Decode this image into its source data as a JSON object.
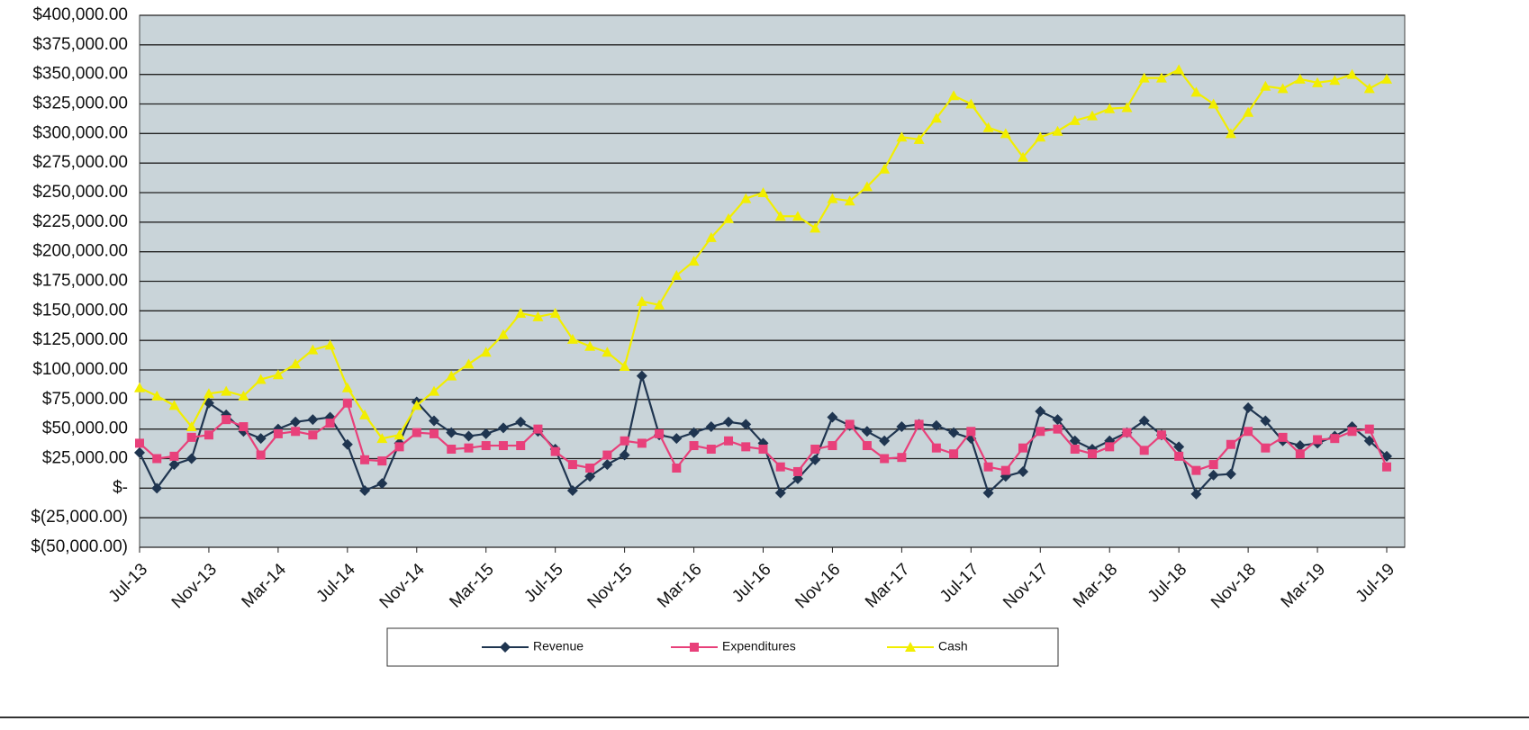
{
  "chart_data": {
    "type": "line",
    "categories": [
      "Jul-13",
      null,
      null,
      null,
      "Nov-13",
      null,
      null,
      null,
      "Mar-14",
      null,
      null,
      null,
      "Jul-14",
      null,
      null,
      null,
      "Nov-14",
      null,
      null,
      null,
      "Mar-15",
      null,
      null,
      null,
      "Jul-15",
      null,
      null,
      null,
      "Nov-15",
      null,
      null,
      null,
      "Mar-16",
      null,
      null,
      null,
      "Jul-16",
      null,
      null,
      null,
      "Nov-16",
      null,
      null,
      null,
      "Mar-17",
      null,
      null,
      null,
      "Jul-17",
      null,
      null,
      null,
      "Nov-17",
      null,
      null,
      null,
      "Mar-18",
      null,
      null,
      null,
      "Jul-18",
      null,
      null,
      null,
      "Nov-18",
      null,
      null,
      null,
      "Mar-19",
      null,
      null,
      null,
      "Jul-19"
    ],
    "series": [
      {
        "name": "Revenue",
        "color": "#1f3550",
        "marker": "diamond",
        "values": [
          30000,
          0,
          20000,
          25000,
          72000,
          62000,
          48000,
          42000,
          50000,
          56000,
          58000,
          60000,
          37000,
          -2000,
          4000,
          38000,
          73000,
          57000,
          47000,
          44000,
          46000,
          51000,
          56000,
          48000,
          33000,
          -2000,
          10000,
          20000,
          28000,
          95000,
          45000,
          42000,
          47000,
          52000,
          56000,
          54000,
          38000,
          -4000,
          8000,
          24000,
          60000,
          53000,
          48000,
          40000,
          52000,
          54000,
          53000,
          47000,
          42000,
          -4000,
          10000,
          14000,
          65000,
          58000,
          40000,
          33000,
          40000,
          47000,
          57000,
          45000,
          35000,
          -5000,
          11000,
          12000,
          68000,
          57000,
          40000,
          36000,
          38000,
          44000,
          52000,
          40000,
          27000
        ]
      },
      {
        "name": "Expenditures",
        "color": "#e8407a",
        "marker": "square",
        "values": [
          38000,
          25000,
          27000,
          43000,
          45000,
          58000,
          52000,
          28000,
          46000,
          48000,
          45000,
          55000,
          72000,
          24000,
          23000,
          35000,
          47000,
          46000,
          33000,
          34000,
          36000,
          36000,
          36000,
          50000,
          31000,
          20000,
          17000,
          28000,
          40000,
          38000,
          46000,
          17000,
          36000,
          33000,
          40000,
          35000,
          33000,
          18000,
          14000,
          33000,
          36000,
          54000,
          36000,
          25000,
          26000,
          54000,
          34000,
          29000,
          48000,
          18000,
          15000,
          34000,
          48000,
          50000,
          33000,
          29000,
          35000,
          47000,
          32000,
          45000,
          27000,
          15000,
          20000,
          37000,
          48000,
          34000,
          43000,
          29000,
          41000,
          42000,
          48000,
          50000,
          18000
        ]
      },
      {
        "name": "Cash",
        "color": "#f2ee00",
        "marker": "triangle",
        "values": [
          85000,
          78000,
          70000,
          52000,
          80000,
          82000,
          78000,
          92000,
          96000,
          105000,
          117000,
          121000,
          85000,
          62000,
          42000,
          45000,
          70000,
          82000,
          95000,
          105000,
          115000,
          130000,
          148000,
          145000,
          148000,
          126000,
          120000,
          115000,
          103000,
          158000,
          155000,
          180000,
          192000,
          212000,
          228000,
          245000,
          250000,
          230000,
          230000,
          220000,
          245000,
          243000,
          255000,
          270000,
          297000,
          295000,
          313000,
          332000,
          325000,
          305000,
          300000,
          280000,
          297000,
          302000,
          311000,
          315000,
          321000,
          322000,
          347000,
          347000,
          354000,
          335000,
          325000,
          300000,
          318000,
          340000,
          338000,
          346000,
          343000,
          345000,
          350000,
          338000,
          346000
        ]
      }
    ],
    "ylim": [
      -50000,
      400000
    ],
    "yticks": [
      {
        "value": -50000,
        "label": "$(50,000.00)"
      },
      {
        "value": -25000,
        "label": "$(25,000.00)"
      },
      {
        "value": 0,
        "label": "$-"
      },
      {
        "value": 25000,
        "label": "$25,000.00"
      },
      {
        "value": 50000,
        "label": "$50,000.00"
      },
      {
        "value": 75000,
        "label": "$75,000.00"
      },
      {
        "value": 100000,
        "label": "$100,000.00"
      },
      {
        "value": 125000,
        "label": "$125,000.00"
      },
      {
        "value": 150000,
        "label": "$150,000.00"
      },
      {
        "value": 175000,
        "label": "$175,000.00"
      },
      {
        "value": 200000,
        "label": "$200,000.00"
      },
      {
        "value": 225000,
        "label": "$225,000.00"
      },
      {
        "value": 250000,
        "label": "$250,000.00"
      },
      {
        "value": 275000,
        "label": "$275,000.00"
      },
      {
        "value": 300000,
        "label": "$300,000.00"
      },
      {
        "value": 325000,
        "label": "$325,000.00"
      },
      {
        "value": 350000,
        "label": "$350,000.00"
      },
      {
        "value": 375000,
        "label": "$375,000.00"
      },
      {
        "value": 400000,
        "label": "$400,000.00"
      }
    ],
    "grid": true,
    "legend": "bottom"
  }
}
